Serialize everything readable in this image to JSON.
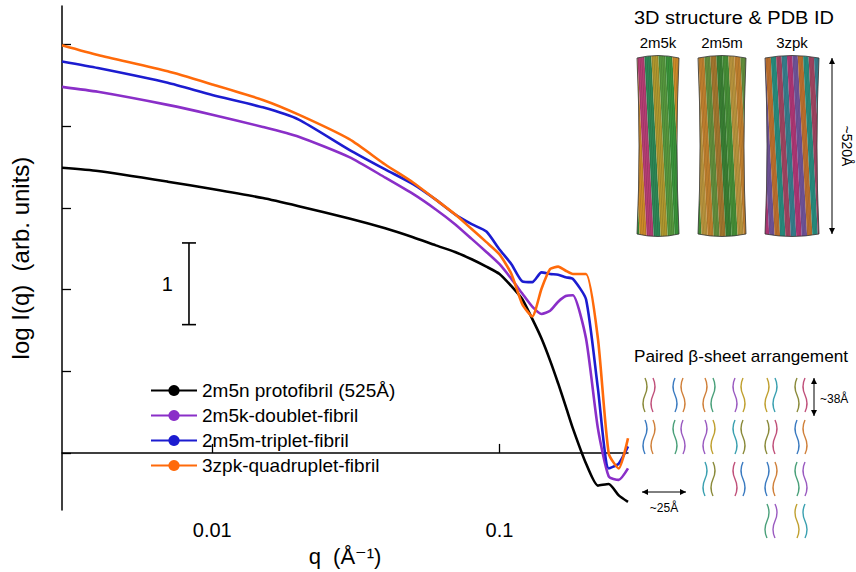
{
  "chart_data": {
    "type": "line",
    "x_label": "q  (Å⁻¹)",
    "y_label": "log I(q)  (arb. units)",
    "log": "x",
    "grid": false,
    "legend": "bottom-left",
    "tick_labels": "x",
    "xlim": [
      0.003,
      0.28
    ],
    "xticks": [
      0.01,
      0.1
    ],
    "ylim": [
      -0.7,
      5.47
    ],
    "yticks": [
      0,
      1,
      2,
      3,
      4,
      5
    ],
    "x": [
      0.003,
      0.004,
      0.007,
      0.01,
      0.015,
      0.02,
      0.03,
      0.04,
      0.05,
      0.06,
      0.07,
      0.08,
      0.09,
      0.1,
      0.11,
      0.12,
      0.13,
      0.14,
      0.15,
      0.16,
      0.17,
      0.18,
      0.2,
      0.22,
      0.24,
      0.26,
      0.28
    ],
    "series": [
      {
        "name": "2m5n protofibril (525Å)",
        "color": "#000000",
        "values": [
          3.49,
          3.45,
          3.32,
          3.23,
          3.12,
          3.02,
          2.87,
          2.75,
          2.64,
          2.54,
          2.46,
          2.37,
          2.28,
          2.19,
          2.04,
          1.88,
          1.64,
          1.4,
          1.13,
          0.85,
          0.57,
          0.3,
          -0.13,
          -0.4,
          -0.38,
          -0.52,
          -0.6
        ]
      },
      {
        "name": "2m5k-doublet-fibril",
        "color": "#8a2fc8",
        "values": [
          4.48,
          4.42,
          4.26,
          4.14,
          3.99,
          3.87,
          3.62,
          3.37,
          3.17,
          2.98,
          2.8,
          2.62,
          2.46,
          2.31,
          2.13,
          1.95,
          1.79,
          1.7,
          1.74,
          1.85,
          1.92,
          1.93,
          1.4,
          0.3,
          -0.29,
          -0.33,
          -0.19
        ]
      },
      {
        "name": "2m5m-triplet-fibril",
        "color": "#1c1cd0",
        "values": [
          4.79,
          4.71,
          4.53,
          4.38,
          4.23,
          4.08,
          3.71,
          3.47,
          3.29,
          3.1,
          2.92,
          2.8,
          2.71,
          2.49,
          2.31,
          2.1,
          2.09,
          2.21,
          2.19,
          2.18,
          2.15,
          2.13,
          1.88,
          0.79,
          -0.19,
          -0.13,
          0.08
        ]
      },
      {
        "name": "3zpk-quadruplet-fibril",
        "color": "#ff6a0a",
        "values": [
          4.99,
          4.87,
          4.67,
          4.51,
          4.32,
          4.14,
          3.84,
          3.53,
          3.31,
          3.1,
          2.92,
          2.74,
          2.58,
          2.43,
          2.19,
          1.82,
          1.67,
          2.01,
          2.25,
          2.28,
          2.23,
          2.19,
          2.19,
          1.4,
          -0.01,
          -0.19,
          0.18
        ]
      }
    ],
    "scale_bar": {
      "x": 0.0083,
      "y": [
        1.57,
        2.57
      ],
      "label": "1"
    }
  },
  "illustration": {
    "structure_title": "3D structure & PDB ID",
    "structures": [
      {
        "pdb": "2m5k",
        "layers": 2
      },
      {
        "pdb": "2m5m",
        "layers": 3
      },
      {
        "pdb": "3zpk",
        "layers": 4
      }
    ],
    "length_label": "~520Å",
    "arrangement_title": "Paired β-sheet arrangement",
    "layer_spacing_label": "~38Å",
    "pair_width_label": "~25Å"
  }
}
